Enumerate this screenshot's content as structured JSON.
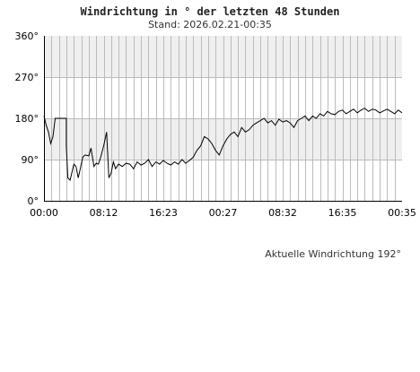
{
  "header": {
    "title": "Windrichtung in ° der letzten 48 Stunden",
    "subtitle": "Stand: 2026.02.21-00:35"
  },
  "current": {
    "label": "Aktuelle Windrichtung 192°"
  },
  "chart_data": {
    "type": "line",
    "title": "Windrichtung in ° der letzten 48 Stunden",
    "subtitle": "Stand: 2026.02.21-00:35",
    "y_ticks": [
      "360°",
      "270°",
      "180°",
      "90°",
      "0°"
    ],
    "y_tick_values": [
      360,
      270,
      180,
      90,
      0
    ],
    "x_ticks": [
      "00:00",
      "08:12",
      "16:23",
      "00:27",
      "08:32",
      "16:35",
      "00:35"
    ],
    "x_range": [
      0,
      48
    ],
    "ylim": [
      0,
      360
    ],
    "grid": true,
    "band_color": "#efefef",
    "grid_color": "#bbbbbb",
    "line_color": "#000000",
    "series": [
      {
        "x": [
          0,
          0.3,
          0.6,
          0.9,
          1.2,
          1.5,
          2.0,
          3.0,
          3.0,
          3.2,
          3.5,
          4.0,
          4.3,
          4.6,
          4.9,
          5.2,
          5.5,
          6.0,
          6.3,
          6.7,
          7.0,
          7.3,
          7.6,
          8.0,
          8.4,
          8.7,
          9.0,
          9.3,
          9.6,
          10.0,
          10.5,
          11.0,
          11.5,
          12.0,
          12.5,
          13.0,
          13.5,
          14.0,
          14.5,
          15.0,
          15.5,
          16.0,
          16.5,
          17.0,
          17.5,
          18.0,
          18.5,
          19.0,
          19.5,
          20.0,
          20.5,
          21.0,
          21.5,
          22.0,
          22.5,
          23.0,
          23.5,
          24.0,
          24.5,
          25.0,
          25.5,
          26.0,
          26.5,
          27.0,
          27.5,
          28.0,
          28.5,
          29.0,
          29.5,
          30.0,
          30.5,
          31.0,
          31.5,
          32.0,
          32.5,
          33.0,
          33.5,
          34.0,
          34.5,
          35.0,
          35.5,
          36.0,
          36.5,
          37.0,
          37.5,
          38.0,
          38.5,
          39.0,
          39.5,
          40.0,
          40.5,
          41.0,
          41.5,
          42.0,
          42.5,
          43.0,
          43.5,
          44.0,
          44.5,
          45.0,
          45.5,
          46.0,
          46.5,
          47.0,
          47.5,
          48.0
        ],
        "y": [
          185,
          165,
          150,
          125,
          140,
          180,
          180,
          180,
          120,
          50,
          45,
          80,
          75,
          50,
          72,
          95,
          100,
          98,
          115,
          75,
          82,
          80,
          95,
          120,
          150,
          50,
          60,
          85,
          70,
          80,
          75,
          82,
          80,
          70,
          85,
          78,
          82,
          90,
          75,
          85,
          80,
          88,
          82,
          78,
          85,
          80,
          90,
          82,
          88,
          95,
          110,
          120,
          140,
          135,
          125,
          110,
          100,
          120,
          135,
          145,
          150,
          140,
          160,
          150,
          155,
          165,
          170,
          175,
          180,
          170,
          175,
          165,
          178,
          172,
          175,
          170,
          160,
          175,
          180,
          185,
          175,
          185,
          180,
          190,
          185,
          195,
          190,
          188,
          195,
          198,
          190,
          195,
          200,
          192,
          198,
          202,
          195,
          200,
          198,
          192,
          196,
          200,
          195,
          190,
          198,
          192
        ]
      }
    ]
  }
}
